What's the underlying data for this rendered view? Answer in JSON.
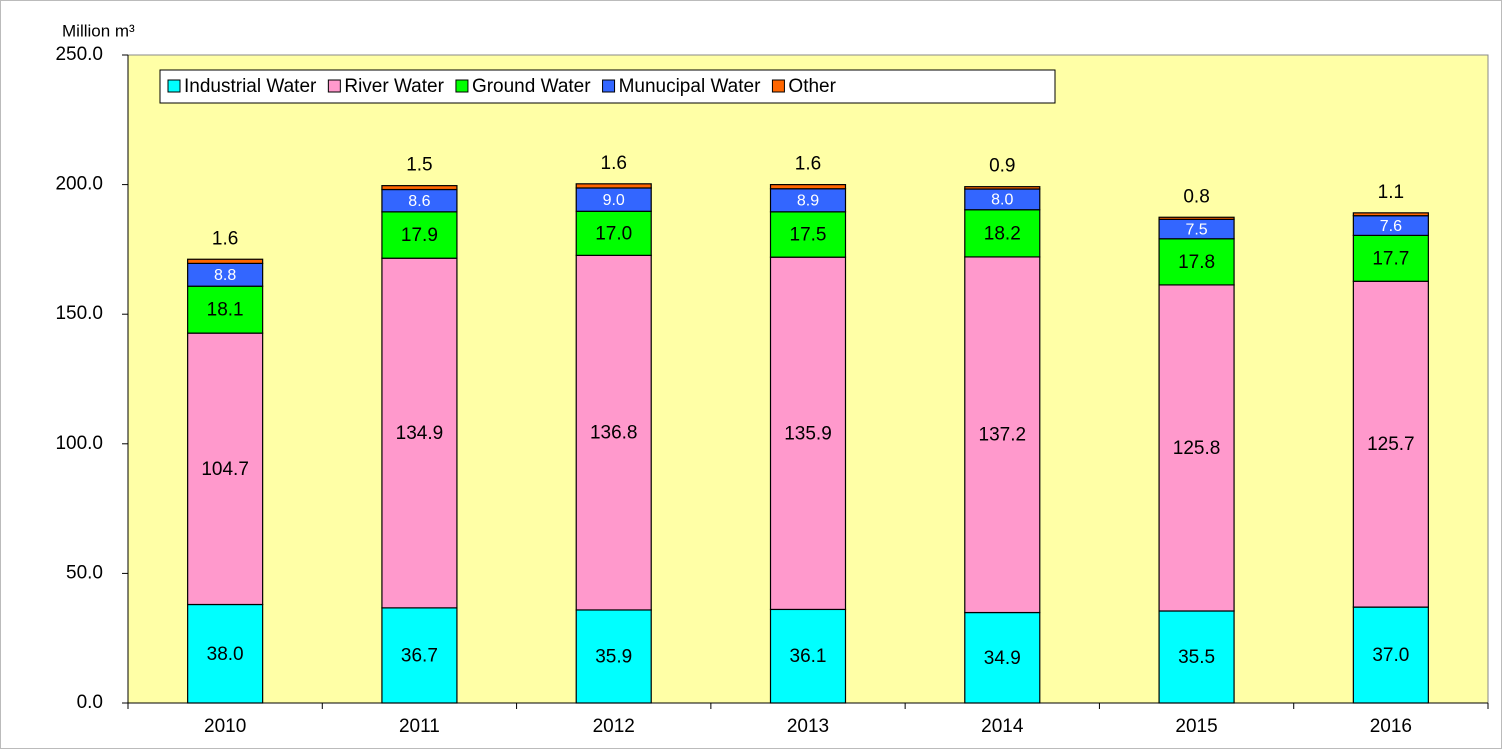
{
  "chart_data": {
    "type": "stacked_bar",
    "y_axis_label": "Million m³",
    "categories": [
      "2010",
      "2011",
      "2012",
      "2013",
      "2014",
      "2015",
      "2016"
    ],
    "series": [
      {
        "name": "Industrial Water",
        "color": "#00ffff",
        "values": [
          38.0,
          36.7,
          35.9,
          36.1,
          34.9,
          35.5,
          37.0
        ],
        "value_labels": [
          "38.0",
          "36.7",
          "35.9",
          "36.1",
          "34.9",
          "35.5",
          "37.0"
        ]
      },
      {
        "name": "River Water",
        "color": "#ff99cc",
        "values": [
          104.7,
          134.9,
          136.8,
          135.9,
          137.2,
          125.8,
          125.7
        ],
        "value_labels": [
          "104.7",
          "134.9",
          "136.8",
          "135.9",
          "137.2",
          "125.8",
          "125.7"
        ]
      },
      {
        "name": "Ground Water",
        "color": "#00ff00",
        "values": [
          18.1,
          17.9,
          17.0,
          17.5,
          18.2,
          17.8,
          17.7
        ],
        "value_labels": [
          "18.1",
          "17.9",
          "17.0",
          "17.5",
          "18.2",
          "17.8",
          "17.7"
        ]
      },
      {
        "name": "Munucipal Water",
        "color": "#3366ff",
        "values": [
          8.8,
          8.6,
          9.0,
          8.9,
          8.0,
          7.5,
          7.6
        ],
        "value_labels": [
          "8.8",
          "8.6",
          "9.0",
          "8.9",
          "8.0",
          "7.5",
          "7.6"
        ]
      },
      {
        "name": "Other",
        "color": "#ff6600",
        "values": [
          1.6,
          1.5,
          1.6,
          1.6,
          0.9,
          0.8,
          1.1
        ],
        "value_labels": [
          "1.6",
          "1.5",
          "1.6",
          "1.6",
          "0.9",
          "0.8",
          "1.1"
        ]
      }
    ],
    "ylim": [
      0,
      250
    ],
    "yticks": [
      {
        "value": 0,
        "label": "0.0"
      },
      {
        "value": 50,
        "label": "50.0"
      },
      {
        "value": 100,
        "label": "100.0"
      },
      {
        "value": 150,
        "label": "150.0"
      },
      {
        "value": 200,
        "label": "200.0"
      },
      {
        "value": 250,
        "label": "250.0"
      }
    ],
    "legend": "top-left"
  }
}
